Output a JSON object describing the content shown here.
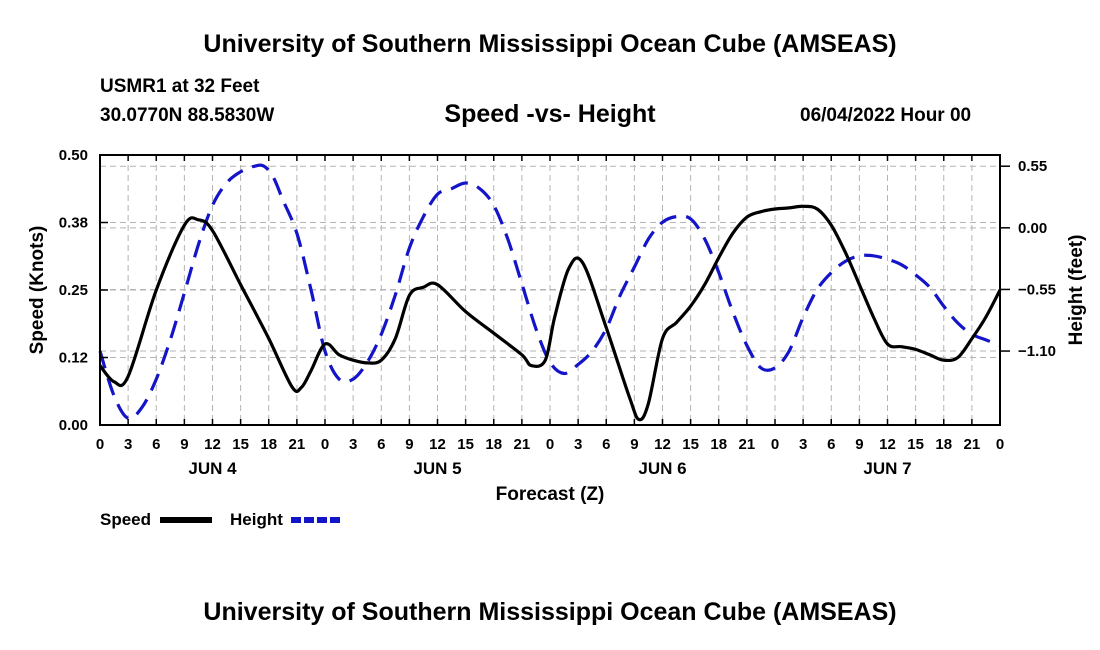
{
  "header": {
    "title": "University of Southern Mississippi Ocean Cube (AMSEAS)",
    "station": "USMR1 at 32 Feet",
    "coords": "30.0770N  88.5830W",
    "subtitle": "Speed -vs- Height",
    "datetime": "06/04/2022 Hour 00"
  },
  "footer": {
    "title": "University of Southern Mississippi Ocean Cube (AMSEAS)"
  },
  "chart_data": {
    "type": "line",
    "title": "Speed -vs- Height",
    "xlabel": "Forecast (Z)",
    "ylabel_left": "Speed (Knots)",
    "ylabel_right": "Height (feet)",
    "x_ticks": [
      "0",
      "3",
      "6",
      "9",
      "12",
      "15",
      "18",
      "21",
      "0",
      "3",
      "6",
      "9",
      "12",
      "15",
      "18",
      "21",
      "0",
      "3",
      "6",
      "9",
      "12",
      "15",
      "18",
      "21",
      "0",
      "3",
      "6",
      "9",
      "12",
      "15",
      "18",
      "21",
      "0"
    ],
    "days": [
      "JUN 4",
      "JUN 5",
      "JUN 6",
      "JUN 7"
    ],
    "xlim": [
      0,
      96
    ],
    "ylim_left": [
      0,
      0.5
    ],
    "ylim_right": [
      -1.76,
      0.65
    ],
    "left_ticks": [
      {
        "v": 0.0,
        "label": "0.00"
      },
      {
        "v": 0.125,
        "label": "0.12"
      },
      {
        "v": 0.25,
        "label": "0.25"
      },
      {
        "v": 0.375,
        "label": "0.38"
      },
      {
        "v": 0.5,
        "label": "0.50"
      }
    ],
    "right_ticks": [
      {
        "v": 0.55,
        "label": "0.55"
      },
      {
        "v": 0.0,
        "label": "0.00"
      },
      {
        "v": -0.55,
        "label": "−0.55"
      },
      {
        "v": -1.1,
        "label": "−1.10"
      }
    ],
    "series": [
      {
        "name": "Speed",
        "axis": "left",
        "color": "#000000",
        "dash": "",
        "x": [
          0,
          1.5,
          3,
          6,
          9,
          10.5,
          12,
          15,
          18,
          20.5,
          21.5,
          22.5,
          24,
          25.5,
          27,
          28.5,
          30,
          31.5,
          33,
          34.5,
          36,
          39,
          42,
          45,
          46,
          47.5,
          48.5,
          50,
          51.5,
          54,
          56.5,
          57.5,
          58.5,
          60,
          61.5,
          63,
          64.5,
          66,
          67.5,
          69,
          70.5,
          72,
          73.5,
          75,
          76.5,
          78,
          79.5,
          81,
          82.5,
          84,
          85.5,
          87,
          88.5,
          90,
          91.5,
          93,
          94.5,
          96
        ],
        "y": [
          0.11,
          0.08,
          0.09,
          0.25,
          0.37,
          0.38,
          0.36,
          0.26,
          0.16,
          0.07,
          0.07,
          0.1,
          0.15,
          0.13,
          0.12,
          0.115,
          0.12,
          0.16,
          0.24,
          0.255,
          0.26,
          0.21,
          0.17,
          0.13,
          0.11,
          0.12,
          0.2,
          0.29,
          0.3,
          0.18,
          0.05,
          0.01,
          0.04,
          0.16,
          0.19,
          0.22,
          0.26,
          0.31,
          0.355,
          0.385,
          0.395,
          0.4,
          0.402,
          0.405,
          0.4,
          0.37,
          0.32,
          0.26,
          0.2,
          0.15,
          0.145,
          0.14,
          0.13,
          0.12,
          0.125,
          0.16,
          0.2,
          0.25
        ]
      },
      {
        "name": "Height",
        "axis": "right",
        "color": "#1414c8",
        "dash": "18 10",
        "x": [
          0,
          1.5,
          3,
          4.5,
          6,
          7.5,
          9,
          10.5,
          12,
          13.5,
          15,
          16.5,
          17.5,
          18.5,
          19.5,
          21,
          22.5,
          24,
          25.5,
          27,
          28.5,
          30,
          31.5,
          33,
          34.5,
          36,
          37.5,
          39,
          40.5,
          42,
          43.5,
          45,
          46.5,
          48,
          49.5,
          51,
          52.5,
          54,
          55.5,
          57,
          58.5,
          60,
          61.5,
          63,
          64.5,
          66,
          67.5,
          69,
          70.5,
          72,
          73.5,
          75,
          76.5,
          78,
          79.5,
          81,
          82.5,
          84,
          85.5,
          87,
          88.5,
          90,
          91.5,
          93,
          94.5,
          96
        ],
        "y": [
          -1.1,
          -1.5,
          -1.7,
          -1.6,
          -1.35,
          -1.0,
          -0.58,
          -0.15,
          0.2,
          0.4,
          0.5,
          0.55,
          0.55,
          0.45,
          0.25,
          -0.05,
          -0.55,
          -1.1,
          -1.35,
          -1.35,
          -1.2,
          -0.95,
          -0.6,
          -0.18,
          0.1,
          0.3,
          0.35,
          0.4,
          0.35,
          0.2,
          -0.1,
          -0.5,
          -0.9,
          -1.2,
          -1.3,
          -1.22,
          -1.1,
          -0.9,
          -0.6,
          -0.35,
          -0.1,
          0.05,
          0.1,
          0.08,
          -0.1,
          -0.4,
          -0.75,
          -1.05,
          -1.25,
          -1.25,
          -1.1,
          -0.8,
          -0.55,
          -0.4,
          -0.3,
          -0.25,
          -0.25,
          -0.28,
          -0.33,
          -0.42,
          -0.53,
          -0.7,
          -0.85,
          -0.95,
          -1.0,
          -1.05
        ]
      }
    ]
  }
}
